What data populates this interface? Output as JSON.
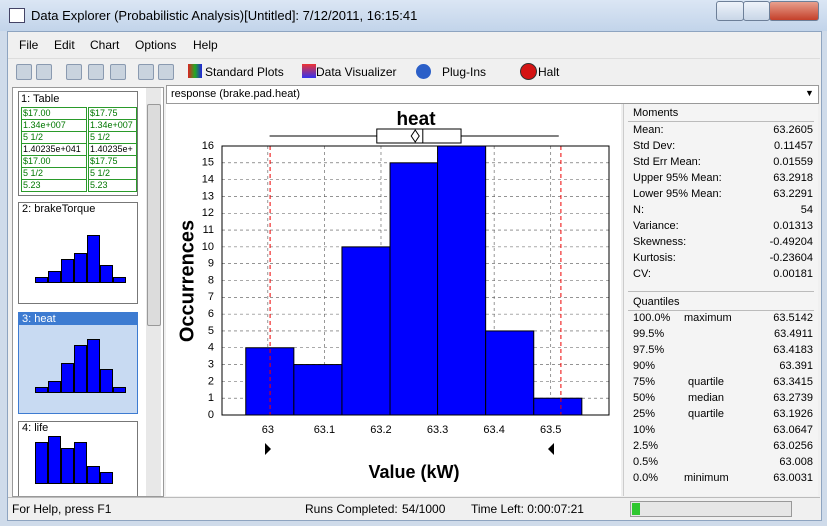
{
  "window": {
    "title": "Data Explorer (Probabilistic Analysis)[Untitled]: 7/12/2011, 16:15:41"
  },
  "menu": [
    "File",
    "Edit",
    "Chart",
    "Options",
    "Help"
  ],
  "toolbar": {
    "standard_plots": "Standard Plots",
    "data_visualizer": "Data Visualizer",
    "plug_ins": "Plug-Ins",
    "halt": "Halt"
  },
  "sidebar": {
    "table": {
      "label": "1: Table",
      "cells": [
        [
          "$17.00",
          "$17.75"
        ],
        [
          "1.34e+007",
          "1.34e+007"
        ],
        [
          "5 1/2",
          "5 1/2"
        ],
        [
          "1.40235e+041",
          "1.40235e+"
        ],
        [
          "$17.00",
          "$17.75"
        ],
        [
          "5 1/2",
          "5 1/2"
        ],
        [
          "5.23",
          "5.23"
        ]
      ]
    },
    "thumbnails": [
      "2: brakeTorque",
      "3: heat",
      "4: life"
    ]
  },
  "response_selector": "response (brake.pad.heat)",
  "chart_data": {
    "type": "histogram",
    "title": "heat",
    "x_label": "Value (kW)",
    "y_label": "Occurrences",
    "bins": [
      62.961,
      63.046,
      63.131,
      63.216,
      63.3,
      63.385,
      63.47,
      63.555
    ],
    "counts": [
      4,
      3,
      10,
      15,
      16,
      5,
      1
    ],
    "color": "#0000ff",
    "xlim": [
      62.919,
      63.603
    ],
    "xticks": [
      63,
      63.1,
      63.2,
      63.3,
      63.4,
      63.5
    ],
    "ylim": [
      0,
      16
    ],
    "yticks": [
      0,
      1,
      2,
      3,
      4,
      5,
      6,
      7,
      8,
      9,
      10,
      11,
      12,
      13,
      14,
      15,
      16
    ],
    "grid": true,
    "reference_lines": [
      63.004,
      63.518
    ],
    "box": {
      "min": 63.0031,
      "q1": 63.1926,
      "median": 63.2739,
      "q3": 63.3415,
      "max": 63.5142,
      "mean": 63.2605
    }
  },
  "moments": {
    "title": "Moments",
    "rows": [
      [
        "Mean:",
        "63.2605"
      ],
      [
        "Std Dev:",
        "0.11457"
      ],
      [
        "Std Err Mean:",
        "0.01559"
      ],
      [
        "Upper 95% Mean:",
        "63.2918"
      ],
      [
        "Lower 95% Mean:",
        "63.2291"
      ],
      [
        "N:",
        "54"
      ],
      [
        "Variance:",
        "0.01313"
      ],
      [
        "Skewness:",
        "-0.49204"
      ],
      [
        "Kurtosis:",
        "-0.23604"
      ],
      [
        "CV:",
        "0.00181"
      ]
    ]
  },
  "quantiles": {
    "title": "Quantiles",
    "rows": [
      {
        "pct": "100.0%",
        "label": "maximum",
        "value": "63.5142"
      },
      {
        "pct": "99.5%",
        "value": "63.4911"
      },
      {
        "pct": "97.5%",
        "value": "63.4183"
      },
      {
        "pct": "90%",
        "value": "63.391"
      },
      {
        "pct": "75%",
        "label": "quartile",
        "value": "63.3415"
      },
      {
        "pct": "50%",
        "label": "median",
        "value": "63.2739"
      },
      {
        "pct": "25%",
        "label": "quartile",
        "value": "63.1926"
      },
      {
        "pct": "10%",
        "value": "63.0647"
      },
      {
        "pct": "2.5%",
        "value": "63.0256"
      },
      {
        "pct": "0.5%",
        "value": "63.008"
      },
      {
        "pct": "0.0%",
        "label": "minimum",
        "value": "63.0031"
      }
    ]
  },
  "status": {
    "help": "For Help, press F1",
    "runs_label": "Runs Completed:",
    "runs": "54/1000",
    "time_left": "Time Left: 0:00:07:21"
  }
}
